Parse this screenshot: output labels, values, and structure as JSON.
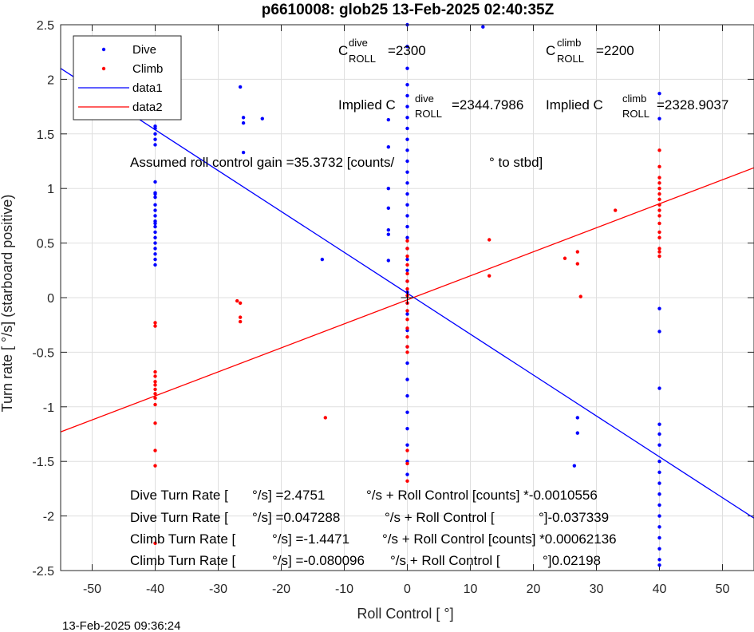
{
  "chart_data": {
    "type": "scatter",
    "title": "p6610008: glob25 13-Feb-2025 02:40:35Z",
    "xlabel": "Roll Control [   °]",
    "ylabel": "Turn rate [   °/s] (starboard positive)",
    "xlim": [
      -55,
      55
    ],
    "ylim": [
      -2.5,
      2.5
    ],
    "xticks": [
      "-50",
      "-40",
      "-30",
      "-20",
      "-10",
      "0",
      "10",
      "20",
      "30",
      "40",
      "50"
    ],
    "xtick_values": [
      -50,
      -40,
      -30,
      -20,
      -10,
      0,
      10,
      20,
      30,
      40,
      50
    ],
    "yticks": [
      "2.5",
      "2",
      "1.5",
      "1",
      "0.5",
      "0",
      "-0.5",
      "-1",
      "-1.5",
      "-2",
      "-2.5"
    ],
    "ytick_values": [
      2.5,
      2,
      1.5,
      1,
      0.5,
      0,
      -0.5,
      -1,
      -1.5,
      -2,
      -2.5
    ],
    "grid": true,
    "legend_position": "top-left",
    "legend": [
      "Dive",
      "Climb",
      "data1",
      "data2"
    ],
    "colors": {
      "dive": "#0000ff",
      "climb": "#ff0000",
      "axis": "#262626",
      "grid": "#dfdfdf"
    },
    "series": [
      {
        "name": "Dive",
        "type": "scatter",
        "color": "#0000ff",
        "points": [
          [
            -40,
            1.57
          ],
          [
            -40,
            1.55
          ],
          [
            -40,
            1.5
          ],
          [
            -40,
            1.45
          ],
          [
            -40,
            1.4
          ],
          [
            -40,
            1.06
          ],
          [
            -40,
            0.96
          ],
          [
            -40,
            0.95
          ],
          [
            -40,
            0.92
          ],
          [
            -40,
            0.85
          ],
          [
            -40,
            0.8
          ],
          [
            -40,
            0.75
          ],
          [
            -40,
            0.7
          ],
          [
            -40,
            0.68
          ],
          [
            -40,
            0.65
          ],
          [
            -40,
            0.6
          ],
          [
            -40,
            0.55
          ],
          [
            -40,
            0.5
          ],
          [
            -40,
            0.45
          ],
          [
            -40,
            0.4
          ],
          [
            -40,
            0.35
          ],
          [
            -40,
            0.3
          ],
          [
            -26.5,
            1.93
          ],
          [
            -26,
            1.65
          ],
          [
            -26,
            1.6
          ],
          [
            -26,
            1.33
          ],
          [
            -23,
            1.64
          ],
          [
            -13.5,
            0.35
          ],
          [
            -3,
            1.63
          ],
          [
            -3,
            1.38
          ],
          [
            -3,
            1.0
          ],
          [
            -3,
            0.82
          ],
          [
            -3,
            0.62
          ],
          [
            -3,
            0.58
          ],
          [
            -3,
            0.34
          ],
          [
            0,
            2.5
          ],
          [
            0,
            2.3
          ],
          [
            0,
            2.1
          ],
          [
            0,
            1.95
          ],
          [
            0,
            1.85
          ],
          [
            0,
            1.75
          ],
          [
            0,
            1.65
          ],
          [
            0,
            1.55
          ],
          [
            0,
            1.45
          ],
          [
            0,
            1.35
          ],
          [
            0,
            1.25
          ],
          [
            0,
            1.15
          ],
          [
            0,
            1.05
          ],
          [
            0,
            0.95
          ],
          [
            0,
            0.85
          ],
          [
            0,
            0.75
          ],
          [
            0,
            0.65
          ],
          [
            0,
            0.55
          ],
          [
            0,
            0.45
          ],
          [
            0,
            0.35
          ],
          [
            0,
            0.25
          ],
          [
            0,
            0.15
          ],
          [
            0,
            0.05
          ],
          [
            0,
            -0.05
          ],
          [
            0,
            -0.15
          ],
          [
            0,
            -0.3
          ],
          [
            0,
            -0.45
          ],
          [
            0,
            -0.6
          ],
          [
            0,
            -0.75
          ],
          [
            0,
            -0.9
          ],
          [
            0,
            -1.05
          ],
          [
            0,
            -1.2
          ],
          [
            0,
            -1.35
          ],
          [
            0,
            -1.5
          ],
          [
            0,
            -1.62
          ],
          [
            12,
            2.48
          ],
          [
            27,
            -1.1
          ],
          [
            27,
            -1.24
          ],
          [
            26.5,
            -1.54
          ],
          [
            40,
            1.87
          ],
          [
            40,
            1.64
          ],
          [
            40,
            -0.1
          ],
          [
            40,
            -0.31
          ],
          [
            40,
            -0.83
          ],
          [
            40,
            -1.16
          ],
          [
            40,
            -1.25
          ],
          [
            40,
            -1.35
          ],
          [
            40,
            -1.5
          ],
          [
            40,
            -1.6
          ],
          [
            40,
            -1.7
          ],
          [
            40,
            -1.8
          ],
          [
            40,
            -1.9
          ],
          [
            40,
            -2.0
          ],
          [
            40,
            -2.1
          ],
          [
            40,
            -2.2
          ],
          [
            40,
            -2.3
          ],
          [
            40,
            -2.4
          ],
          [
            40,
            -2.45
          ]
        ]
      },
      {
        "name": "Climb",
        "type": "scatter",
        "color": "#ff0000",
        "points": [
          [
            -40,
            -0.23
          ],
          [
            -40,
            -0.26
          ],
          [
            -40,
            -0.68
          ],
          [
            -40,
            -0.72
          ],
          [
            -40,
            -0.77
          ],
          [
            -40,
            -0.8
          ],
          [
            -40,
            -0.84
          ],
          [
            -40,
            -0.88
          ],
          [
            -40,
            -0.92
          ],
          [
            -40,
            -0.98
          ],
          [
            -40,
            -1.15
          ],
          [
            -40,
            -1.4
          ],
          [
            -40,
            -1.54
          ],
          [
            -40,
            -2.25
          ],
          [
            -27,
            -0.03
          ],
          [
            -26.5,
            -0.05
          ],
          [
            -26.5,
            -0.18
          ],
          [
            -26.5,
            -0.22
          ],
          [
            -13,
            -1.1
          ],
          [
            0,
            0.52
          ],
          [
            0,
            0.45
          ],
          [
            0,
            0.38
          ],
          [
            0,
            0.3
          ],
          [
            0,
            0.22
          ],
          [
            0,
            0.15
          ],
          [
            0,
            0.08
          ],
          [
            0,
            0.02
          ],
          [
            0,
            -0.05
          ],
          [
            0,
            -0.12
          ],
          [
            0,
            -0.2
          ],
          [
            0,
            -0.28
          ],
          [
            0,
            -0.36
          ],
          [
            0,
            -0.45
          ],
          [
            0,
            -0.5
          ],
          [
            0,
            -1.4
          ],
          [
            0,
            -1.52
          ],
          [
            0,
            -1.68
          ],
          [
            13,
            0.53
          ],
          [
            13,
            0.2
          ],
          [
            25,
            0.36
          ],
          [
            27,
            0.42
          ],
          [
            27,
            0.31
          ],
          [
            27.5,
            0.01
          ],
          [
            33,
            0.8
          ],
          [
            40,
            1.35
          ],
          [
            40,
            1.2
          ],
          [
            40,
            1.1
          ],
          [
            40,
            1.05
          ],
          [
            40,
            1.0
          ],
          [
            40,
            0.95
          ],
          [
            40,
            0.9
          ],
          [
            40,
            0.85
          ],
          [
            40,
            0.8
          ],
          [
            40,
            0.75
          ],
          [
            40,
            0.68
          ],
          [
            40,
            0.6
          ],
          [
            40,
            0.55
          ],
          [
            40,
            0.45
          ],
          [
            40,
            0.42
          ],
          [
            40,
            0.38
          ]
        ]
      },
      {
        "name": "data1",
        "type": "line",
        "color": "#0000ff",
        "points": [
          [
            -55,
            2.1
          ],
          [
            55,
            -2.02
          ]
        ]
      },
      {
        "name": "data2",
        "type": "line",
        "color": "#ff0000",
        "points": [
          [
            -55,
            -1.23
          ],
          [
            55,
            1.19
          ]
        ]
      }
    ],
    "annotations": {
      "c_dive_main": "C",
      "c_dive_sup": "dive",
      "c_dive_sub": "ROLL",
      "c_dive_value": "=2300",
      "c_climb_main": "C",
      "c_climb_sup": "climb",
      "c_climb_sub": "ROLL",
      "c_climb_value": "=2200",
      "implied_dive_prefix": "Implied C",
      "implied_dive_sup": "dive",
      "implied_dive_sub": "ROLL",
      "implied_dive_value": "=2344.7986",
      "implied_climb_prefix": "Implied C",
      "implied_climb_sup": "climb",
      "implied_climb_sub": "ROLL",
      "implied_climb_value": "=2328.9037",
      "gain_a": "Assumed roll control gain =35.3732 [counts/",
      "gain_b": "° to stbd]",
      "eq1_a": "Dive Turn Rate [",
      "eq1_b": "°/s] =2.4751",
      "eq1_c": "°/s + Roll Control [counts] *-0.0010556",
      "eq2_a": "Dive Turn Rate [",
      "eq2_b": "°/s] =0.047288",
      "eq2_c": "°/s + Roll Control [",
      "eq2_d": "°]-0.037339",
      "eq3_a": "Climb Turn Rate [",
      "eq3_b": "°/s] =-1.4471",
      "eq3_c": "°/s + Roll Control [counts] *0.00062136",
      "eq4_a": "Climb Turn Rate [",
      "eq4_b": "°/s] =-0.080096",
      "eq4_c": "°/s + Roll Control [",
      "eq4_d": "°]0.02198"
    },
    "footer": "13-Feb-2025 09:36:24"
  }
}
